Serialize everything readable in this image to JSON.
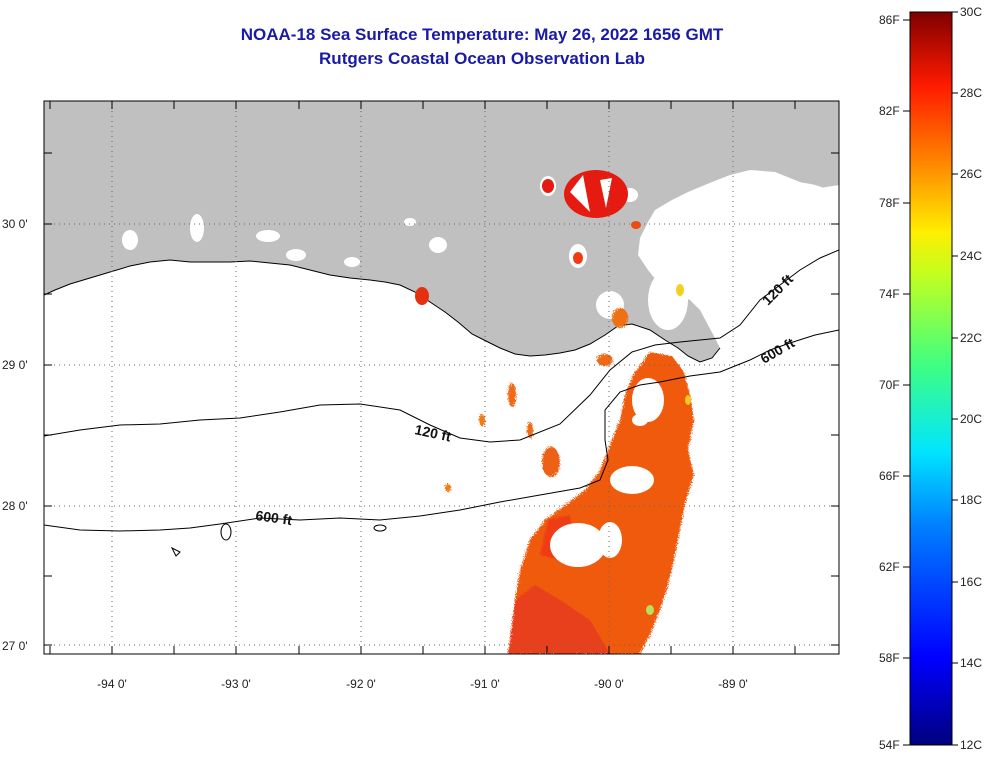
{
  "title": "NOAA-18 Sea Surface Temperature:  May 26, 2022 1656 GMT",
  "subtitle": "Rutgers Coastal Ocean Observation Lab",
  "lat_labels": [
    "30 0'",
    "29 0'",
    "28 0'",
    "27 0'"
  ],
  "lon_labels": [
    "-94 0'",
    "-93 0'",
    "-92 0'",
    "-91 0'",
    "-90 0'",
    "-89 0'"
  ],
  "contour_labels": [
    "120 ft",
    "600 ft",
    "120 ft",
    "600 ft"
  ],
  "colorbar": {
    "fahrenheit": [
      "86F",
      "82F",
      "78F",
      "74F",
      "70F",
      "66F",
      "62F",
      "58F",
      "54F"
    ],
    "celsius": [
      "30C",
      "28C",
      "26C",
      "24C",
      "22C",
      "20C",
      "18C",
      "16C",
      "14C",
      "12C"
    ]
  },
  "colors": {
    "land": "#c0c0c0",
    "title": "#1a1aa6",
    "sst_warm": "#f05a10",
    "sst_hot": "#e51a10"
  }
}
